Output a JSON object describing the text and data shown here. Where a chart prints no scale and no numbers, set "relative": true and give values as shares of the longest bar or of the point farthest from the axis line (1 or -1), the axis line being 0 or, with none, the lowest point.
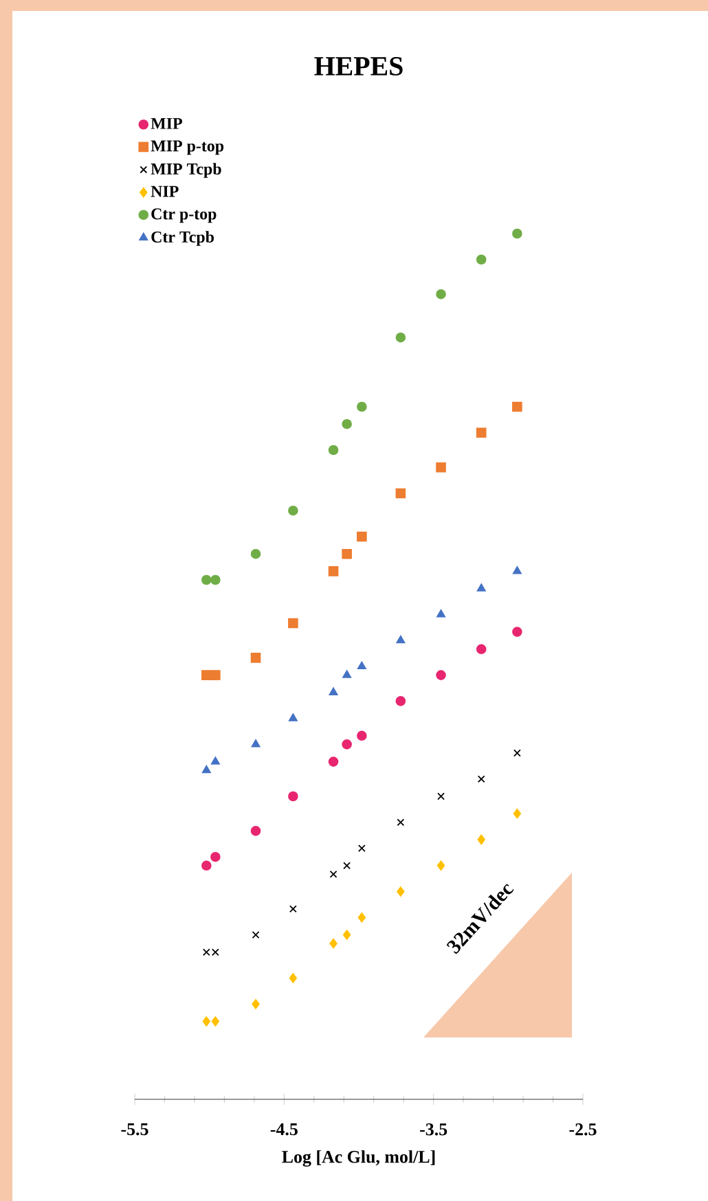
{
  "chart_data": {
    "type": "scatter",
    "title": "HEPES",
    "xlabel": "Log [Ac Glu, mol/L]",
    "relative": true,
    "xlim": [
      -5.5,
      -2.5
    ],
    "xticks": [
      -5.5,
      -4.5,
      -3.5,
      -2.5
    ],
    "grid": false,
    "legend": "top left",
    "x": [
      -5.02,
      -4.96,
      -4.69,
      -4.44,
      -4.17,
      -4.08,
      -3.98,
      -3.72,
      -3.45,
      -3.18,
      -2.94
    ],
    "annotations": [
      "32mV/dec"
    ],
    "series": [
      {
        "name": "MIP",
        "color": "#e8266f",
        "marker": "circle",
        "values": [
          0.27,
          0.28,
          0.31,
          0.35,
          0.39,
          0.41,
          0.42,
          0.46,
          0.49,
          0.52,
          0.54
        ]
      },
      {
        "name": "MIP p-top",
        "color": "#ed7d31",
        "marker": "square",
        "values": [
          0.49,
          0.49,
          0.51,
          0.55,
          0.61,
          0.63,
          0.65,
          0.7,
          0.73,
          0.77,
          0.8
        ]
      },
      {
        "name": "MIP Tcpb",
        "color": "#000000",
        "marker": "cross",
        "values": [
          0.17,
          0.17,
          0.19,
          0.22,
          0.26,
          0.27,
          0.29,
          0.32,
          0.35,
          0.37,
          0.4
        ]
      },
      {
        "name": "NIP",
        "color": "#ffc000",
        "marker": "diamond",
        "values": [
          0.09,
          0.09,
          0.11,
          0.14,
          0.18,
          0.19,
          0.21,
          0.24,
          0.27,
          0.3,
          0.33
        ]
      },
      {
        "name": "Ctr p-top",
        "color": "#70ad47",
        "marker": "circle",
        "values": [
          0.6,
          0.6,
          0.63,
          0.68,
          0.75,
          0.78,
          0.8,
          0.88,
          0.93,
          0.97,
          1.0
        ]
      },
      {
        "name": "Ctr Tcpb",
        "color": "#4472c4",
        "marker": "triangle",
        "values": [
          0.38,
          0.39,
          0.41,
          0.44,
          0.47,
          0.49,
          0.5,
          0.53,
          0.56,
          0.59,
          0.61
        ]
      }
    ]
  }
}
